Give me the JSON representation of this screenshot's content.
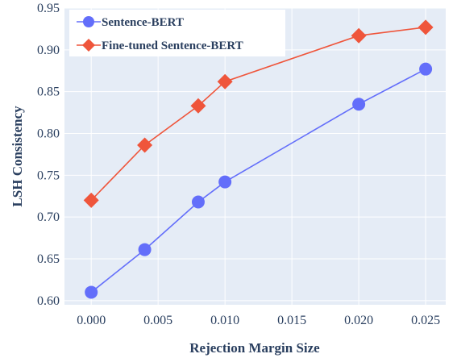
{
  "chart_data": {
    "type": "line",
    "xlabel": "Rejection Margin Size",
    "ylabel": "LSH Consistency",
    "xlim": [
      -0.002,
      0.0265
    ],
    "ylim": [
      0.595,
      0.95
    ],
    "x_ticks": [
      "0.000",
      "0.005",
      "0.010",
      "0.015",
      "0.020",
      "0.025"
    ],
    "y_ticks": [
      "0.60",
      "0.65",
      "0.70",
      "0.75",
      "0.80",
      "0.85",
      "0.90",
      "0.95"
    ],
    "grid": true,
    "legend_position": "top-left",
    "x": [
      0.0,
      0.004,
      0.008,
      0.01,
      0.02,
      0.025
    ],
    "series": [
      {
        "name": "Sentence-BERT",
        "values": [
          0.61,
          0.661,
          0.718,
          0.742,
          0.835,
          0.877
        ],
        "color": "#636efa",
        "marker": "circle"
      },
      {
        "name": "Fine-tuned Sentence-BERT",
        "values": [
          0.72,
          0.786,
          0.833,
          0.862,
          0.917,
          0.927
        ],
        "color": "#ef553b",
        "marker": "diamond"
      }
    ],
    "plot_background": "#e5ecf6",
    "grid_color": "#ffffff"
  }
}
